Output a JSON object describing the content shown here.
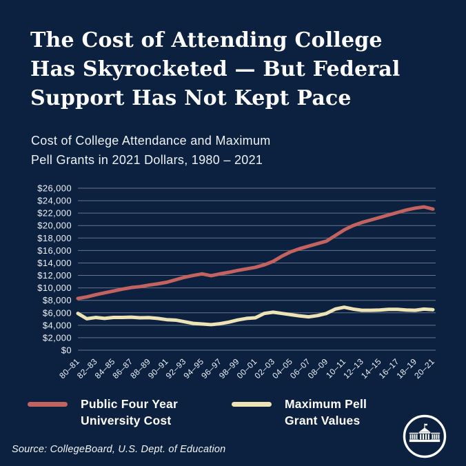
{
  "header": {
    "title_lines": [
      "The Cost of Attending College",
      "Has Skyrocketed — But Federal",
      "Support Has Not Kept Pace"
    ],
    "subtitle_lines": [
      "Cost of College Attendance and Maximum",
      "Pell Grants in 2021 Dollars, 1980 – 2021"
    ]
  },
  "colors": {
    "background": "#0c2140",
    "text": "#ffffff",
    "university_cost_line": "#c36360",
    "pell_grant_line": "#eee3b4",
    "gridline": "rgba(255,255,255,0.38)"
  },
  "chart_data": {
    "type": "line",
    "title": "Cost of College Attendance and Maximum Pell Grants in 2021 Dollars, 1980 – 2021",
    "xlabel": "",
    "ylabel": "",
    "ylim": [
      0,
      26000
    ],
    "y_tick_step": 2000,
    "grid": "horizontal",
    "legend_position": "bottom",
    "y_tick_labels": [
      "$0",
      "$2,000",
      "$4,000",
      "$6,000",
      "$8,000",
      "$10,000",
      "$12,000",
      "$14,000",
      "$16,000",
      "$18,000",
      "$20,000",
      "$22,000",
      "$24,000",
      "$26,000"
    ],
    "x_tick_labels": [
      "80–81",
      "82–83",
      "84–85",
      "86–87",
      "88–89",
      "90–91",
      "92–93",
      "94–95",
      "96–97",
      "98–99",
      "00–01",
      "02–03",
      "04–05",
      "06–07",
      "08–09",
      "10–11",
      "12–13",
      "14–15",
      "16–17",
      "18–19",
      "20–21"
    ],
    "x_tick_every": 2,
    "n_points": 41,
    "x_range_note": "annual academic years 1980-81 through 2020-21",
    "series": [
      {
        "name": "Public Four Year University Cost",
        "color_key": "university_cost_line",
        "values": [
          8300,
          8550,
          8900,
          9200,
          9500,
          9800,
          10050,
          10200,
          10450,
          10650,
          10900,
          11300,
          11700,
          12000,
          12250,
          11950,
          12250,
          12500,
          12800,
          13050,
          13300,
          13700,
          14250,
          15100,
          15800,
          16300,
          16700,
          17100,
          17500,
          18400,
          19300,
          20000,
          20500,
          20900,
          21300,
          21700,
          22100,
          22500,
          22800,
          23000,
          22650
        ]
      },
      {
        "name": "Maximum Pell Grant Values",
        "color_key": "pell_grant_line",
        "values": [
          5900,
          5050,
          5250,
          5100,
          5250,
          5250,
          5300,
          5200,
          5230,
          5100,
          4900,
          4830,
          4570,
          4300,
          4200,
          4100,
          4250,
          4500,
          4850,
          5100,
          5200,
          5900,
          6100,
          5900,
          5700,
          5500,
          5350,
          5550,
          5900,
          6600,
          6900,
          6600,
          6400,
          6400,
          6450,
          6550,
          6550,
          6450,
          6400,
          6600,
          6500
        ]
      }
    ]
  },
  "legend": {
    "items": [
      {
        "label_lines": [
          "Public Four Year",
          "University Cost"
        ],
        "color": "#c36360"
      },
      {
        "label_lines": [
          "Maximum Pell",
          "Grant Values"
        ],
        "color": "#eee3b4"
      }
    ]
  },
  "footer": {
    "source": "Source: CollegeBoard, U.S. Dept. of Education",
    "logo_name": "whitehouse-logo"
  }
}
